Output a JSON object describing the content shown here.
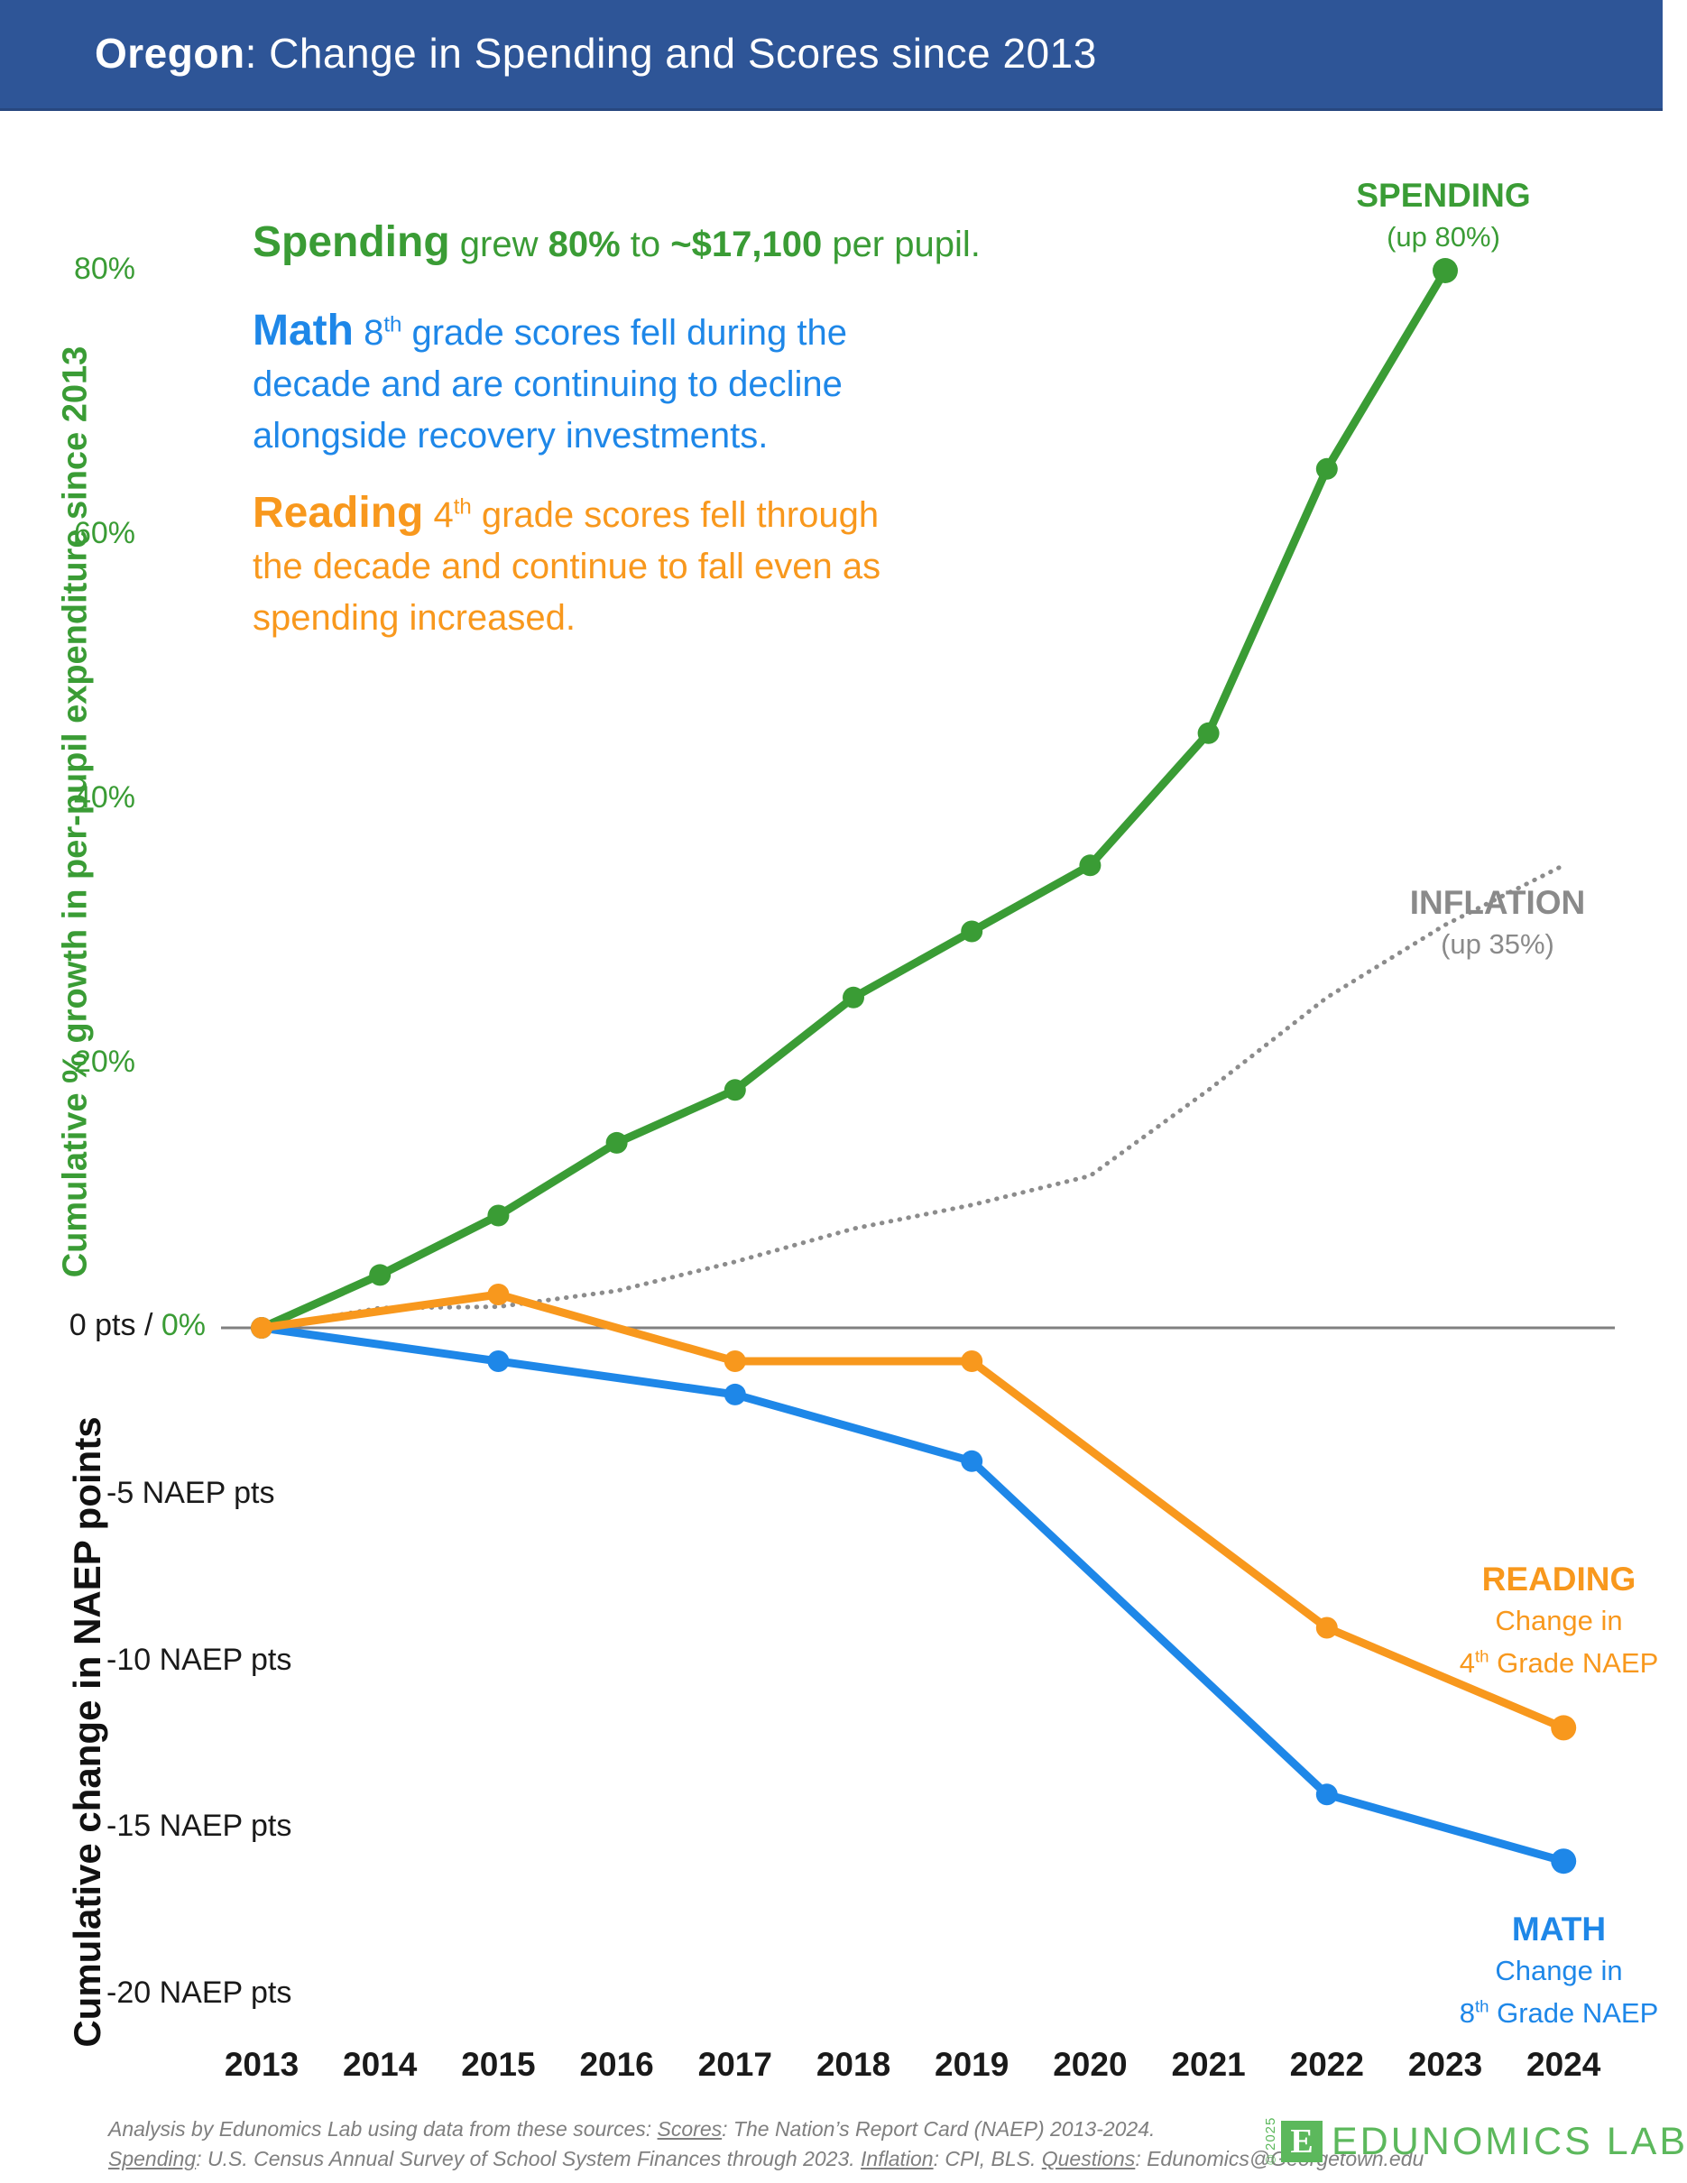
{
  "header": {
    "state": "Oregon",
    "title_rest": ": Change in Spending and Scores since 2013"
  },
  "colors": {
    "green": "#3A9C35",
    "blue": "#1E87E8",
    "orange": "#F8981D",
    "gray": "#8C8C8C",
    "zero_line": "#808080",
    "title_bar": "#2E5597",
    "logo_green": "#5CB85C",
    "footer_gray": "#7F7F7F"
  },
  "annotations": {
    "spending": {
      "lead": "Spending",
      "t1": " grew ",
      "b1": "80%",
      "t2": " to ",
      "b2": "~$17,100",
      "t3": " per pupil."
    },
    "math": {
      "lead": "Math",
      "pre": " 8",
      "sup": "th",
      "rest": " grade scores fell during the\ndecade and are continuing to decline\nalongside recovery investments."
    },
    "reading": {
      "lead": "Reading",
      "pre": " 4",
      "sup": "th",
      "rest": " grade scores fell through\nthe decade and continue to fall even as\nspending increased."
    }
  },
  "axis": {
    "ylabel_top": "Cumulative % growth in per-pupil expenditure since 2013",
    "ylabel_bottom": "Cumulative change in NAEP points",
    "pct_ticks": [
      {
        "v": 80,
        "label": "80%"
      },
      {
        "v": 60,
        "label": "60%"
      },
      {
        "v": 40,
        "label": "40%"
      },
      {
        "v": 20,
        "label": "20%"
      }
    ],
    "zero_pts": "0 pts",
    "zero_sep": " / ",
    "zero_pct": "0%",
    "naep_ticks": [
      {
        "v": -5,
        "label": "-5 NAEP pts"
      },
      {
        "v": -10,
        "label": "-10 NAEP pts"
      },
      {
        "v": -15,
        "label": "-15 NAEP pts"
      },
      {
        "v": -20,
        "label": "-20 NAEP pts"
      }
    ]
  },
  "series_labels": {
    "spending": {
      "title": "SPENDING",
      "sub": "(up 80%)"
    },
    "inflation": {
      "title": "INFLATION",
      "sub": "(up 35%)"
    },
    "reading": {
      "title": "READING",
      "line2": "Change in",
      "line3_pre": "4",
      "line3_sup": "th",
      "line3_post": " Grade NAEP"
    },
    "math": {
      "title": "MATH",
      "line2": "Change in",
      "line3_pre": "8",
      "line3_sup": "th",
      "line3_post": " Grade NAEP"
    }
  },
  "chart_data": {
    "type": "line",
    "x_years": [
      2013,
      2014,
      2015,
      2016,
      2017,
      2018,
      2019,
      2020,
      2021,
      2022,
      2023,
      2024
    ],
    "ylim_percent": [
      0,
      80
    ],
    "ylim_naep": [
      -20,
      0
    ],
    "grid": false,
    "series": [
      {
        "name": "INFLATION",
        "axis": "percent",
        "unit": "%",
        "color_key": "gray",
        "style": "dotted",
        "markers": false,
        "width": 5,
        "x": [
          2013,
          2014,
          2015,
          2016,
          2017,
          2018,
          2019,
          2020,
          2021,
          2022,
          2023,
          2024
        ],
        "values": [
          0,
          1.5,
          1.6,
          2.8,
          5,
          7.5,
          9.3,
          11.5,
          18,
          25,
          30.5,
          35
        ]
      },
      {
        "name": "SPENDING",
        "axis": "percent",
        "unit": "%",
        "color_key": "green",
        "style": "solid",
        "markers": true,
        "width": 9,
        "x": [
          2013,
          2014,
          2015,
          2016,
          2017,
          2018,
          2019,
          2020,
          2021,
          2022,
          2023
        ],
        "values": [
          0,
          4,
          8.5,
          14,
          18,
          25,
          30,
          35,
          45,
          65,
          80
        ]
      },
      {
        "name": "MATH",
        "axis": "naep",
        "unit": "NAEP pts",
        "color_key": "blue",
        "style": "solid",
        "markers": true,
        "width": 9,
        "x": [
          2013,
          2015,
          2017,
          2019,
          2022,
          2024
        ],
        "values": [
          0,
          -1,
          -2,
          -4,
          -14,
          -16
        ]
      },
      {
        "name": "READING",
        "axis": "naep",
        "unit": "NAEP pts",
        "color_key": "orange",
        "style": "solid",
        "markers": true,
        "width": 9,
        "x": [
          2013,
          2015,
          2017,
          2019,
          2022,
          2024
        ],
        "values": [
          0,
          1,
          -1,
          -1,
          -9,
          -12
        ]
      }
    ]
  },
  "footer": {
    "line1": [
      {
        "t": "Analysis by Edunomics Lab using data from these sources: ",
        "u": false
      },
      {
        "t": "Scores",
        "u": true
      },
      {
        "t": ": The Nation’s Report Card (NAEP) 2013-2024.",
        "u": false
      }
    ],
    "line2": [
      {
        "t": "Spending",
        "u": true
      },
      {
        "t": ": U.S. Census Annual Survey of School System Finances through 2023. ",
        "u": false
      },
      {
        "t": "Inflation",
        "u": true
      },
      {
        "t": ": CPI, BLS. ",
        "u": false
      },
      {
        "t": "Questions",
        "u": true
      },
      {
        "t": ": Edunomics@Georgetown.edu",
        "u": false
      }
    ]
  },
  "logo": {
    "copyright": "©2025",
    "monogram": "E",
    "name": "EDUNOMICS LAB"
  }
}
